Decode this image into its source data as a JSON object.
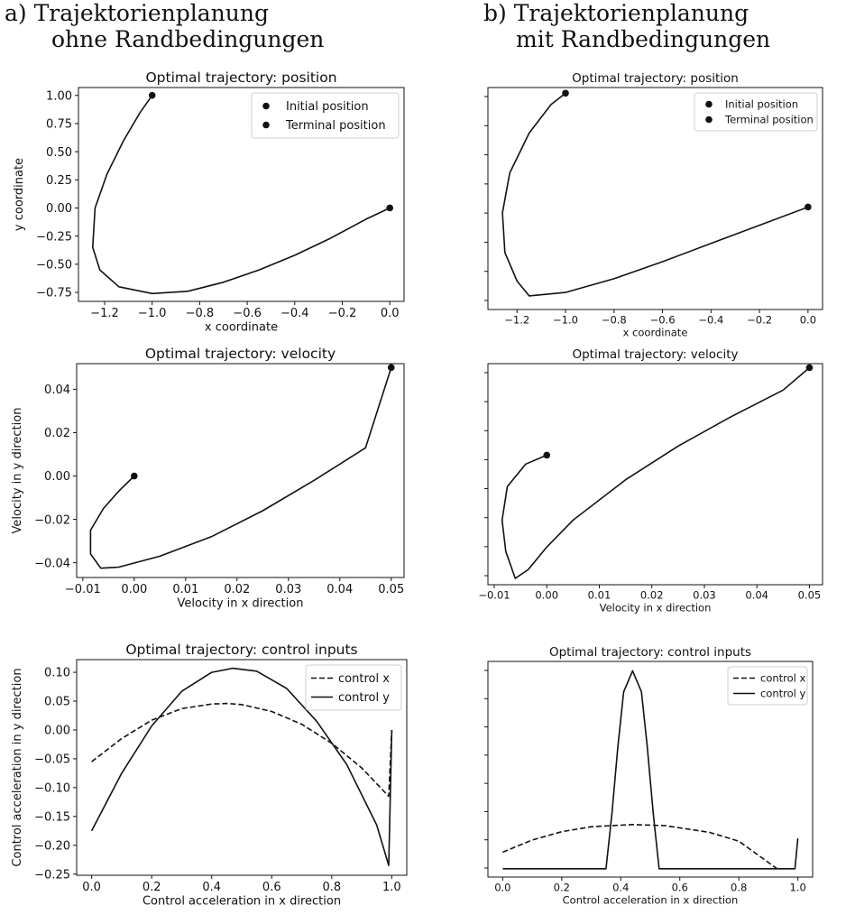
{
  "headings": {
    "a": {
      "line1": "a) Trajektorienplanung",
      "line2": "ohne Randbedingungen"
    },
    "b": {
      "line1": "b) Trajektorienplanung",
      "line2": "mit Randbedingungen"
    }
  },
  "chart_data": [
    {
      "id": "a-position",
      "type": "line",
      "title": "Optimal trajectory: position",
      "xlabel": "x coordinate",
      "ylabel": "y coordinate",
      "xlim": [
        -1.31,
        0.06
      ],
      "ylim": [
        -0.83,
        1.07
      ],
      "xticks": [
        -1.2,
        -1.0,
        -0.8,
        -0.6,
        -0.4,
        -0.2,
        0.0
      ],
      "xtick_labels": [
        "−1.2",
        "−1.0",
        "−0.8",
        "−0.6",
        "−0.4",
        "−0.2",
        "0.0"
      ],
      "yticks": [
        1.0,
        0.75,
        0.5,
        0.25,
        0.0,
        -0.25,
        -0.5,
        -0.75
      ],
      "ytick_labels": [
        "1.00",
        "0.75",
        "0.50",
        "0.25",
        "0.00",
        "−0.25",
        "−0.50",
        "−0.75"
      ],
      "legend": {
        "position": "top-right",
        "entries": [
          {
            "label": "Initial position",
            "marker": "dot"
          },
          {
            "label": "Terminal position",
            "marker": "dot"
          }
        ]
      },
      "series": [
        {
          "style": "solid",
          "x": [
            -1.0,
            -1.05,
            -1.12,
            -1.19,
            -1.24,
            -1.25,
            -1.22,
            -1.14,
            -1.0,
            -0.85,
            -0.7,
            -0.55,
            -0.4,
            -0.25,
            -0.1,
            0.0
          ],
          "y": [
            1.0,
            0.85,
            0.6,
            0.3,
            0.0,
            -0.35,
            -0.55,
            -0.7,
            -0.76,
            -0.74,
            -0.66,
            -0.55,
            -0.42,
            -0.27,
            -0.1,
            0.0
          ]
        }
      ],
      "points": [
        {
          "x": -1.0,
          "y": 1.0
        },
        {
          "x": 0.0,
          "y": 0.0
        }
      ]
    },
    {
      "id": "b-position",
      "type": "line",
      "title": "Optimal trajectory: position",
      "xlabel": "x coordinate",
      "ylabel": "",
      "xlim": [
        -1.32,
        0.06
      ],
      "ylim": [
        -0.9,
        1.05
      ],
      "xticks": [
        -1.2,
        -1.0,
        -0.8,
        -0.6,
        -0.4,
        -0.2,
        0.0
      ],
      "xtick_labels": [
        "−1.2",
        "−1.0",
        "−0.8",
        "−0.6",
        "−0.4",
        "−0.2",
        "0.0"
      ],
      "yticks": [],
      "ytick_labels": [],
      "legend": {
        "position": "top-right",
        "entries": [
          {
            "label": "Initial position",
            "marker": "dot"
          },
          {
            "label": "Terminal position",
            "marker": "dot"
          }
        ]
      },
      "series": [
        {
          "style": "solid",
          "x": [
            -1.0,
            -1.06,
            -1.15,
            -1.23,
            -1.26,
            -1.25,
            -1.2,
            -1.15,
            -1.0,
            -0.8,
            -0.6,
            -0.4,
            -0.2,
            0.0
          ],
          "y": [
            1.0,
            0.9,
            0.65,
            0.3,
            -0.05,
            -0.4,
            -0.65,
            -0.78,
            -0.75,
            -0.63,
            -0.48,
            -0.32,
            -0.16,
            0.0
          ]
        }
      ],
      "points": [
        {
          "x": -1.0,
          "y": 1.0
        },
        {
          "x": 0.0,
          "y": 0.0
        }
      ]
    },
    {
      "id": "a-velocity",
      "type": "line",
      "title": "Optimal trajectory: velocity",
      "xlabel": "Velocity in x direction",
      "ylabel": "Velocity in y direction",
      "xlim": [
        -0.0112,
        0.0525
      ],
      "ylim": [
        -0.0468,
        0.0518
      ],
      "xticks": [
        -0.01,
        0.0,
        0.01,
        0.02,
        0.03,
        0.04,
        0.05
      ],
      "xtick_labels": [
        "−0.01",
        "0.00",
        "0.01",
        "0.02",
        "0.03",
        "0.04",
        "0.05"
      ],
      "yticks": [
        0.04,
        0.02,
        0.0,
        -0.02,
        -0.04
      ],
      "ytick_labels": [
        "0.04",
        "0.02",
        "0.00",
        "−0.02",
        "−0.04"
      ],
      "series": [
        {
          "style": "solid",
          "x": [
            0.0,
            -0.003,
            -0.006,
            -0.0085,
            -0.0085,
            -0.0065,
            -0.003,
            0.005,
            0.015,
            0.025,
            0.035,
            0.045,
            0.05
          ],
          "y": [
            0.0,
            -0.007,
            -0.015,
            -0.025,
            -0.036,
            -0.0425,
            -0.042,
            -0.037,
            -0.028,
            -0.016,
            -0.002,
            0.013,
            0.05
          ]
        }
      ],
      "points": [
        {
          "x": 0.0,
          "y": 0.0
        },
        {
          "x": 0.05,
          "y": 0.05
        }
      ]
    },
    {
      "id": "b-velocity",
      "type": "line",
      "title": "Optimal trajectory: velocity",
      "xlabel": "Velocity in x direction",
      "ylabel": "",
      "xlim": [
        -0.0112,
        0.0525
      ],
      "ylim": [
        -0.0468,
        0.0518
      ],
      "xticks": [
        -0.01,
        0.0,
        0.01,
        0.02,
        0.03,
        0.04,
        0.05
      ],
      "xtick_labels": [
        "−0.01",
        "0.00",
        "0.01",
        "0.02",
        "0.03",
        "0.04",
        "0.05"
      ],
      "yticks": [],
      "ytick_labels": [],
      "series": [
        {
          "style": "solid",
          "x": [
            0.0,
            -0.004,
            -0.0075,
            -0.0085,
            -0.0078,
            -0.006,
            -0.0035,
            0.0,
            0.005,
            0.015,
            0.025,
            0.035,
            0.045,
            0.05
          ],
          "y": [
            0.011,
            0.007,
            -0.003,
            -0.018,
            -0.032,
            -0.044,
            -0.04,
            -0.03,
            -0.018,
            -0.0,
            0.015,
            0.028,
            0.04,
            0.05
          ]
        }
      ],
      "points": [
        {
          "x": 0.0,
          "y": 0.011
        },
        {
          "x": 0.05,
          "y": 0.05
        }
      ]
    },
    {
      "id": "a-control",
      "type": "line",
      "title": "Optimal trajectory: control inputs",
      "xlabel": "Control acceleration in x direction",
      "ylabel": "Control acceleration in y direction",
      "xlim": [
        -0.05,
        1.05
      ],
      "ylim": [
        -0.252,
        0.122
      ],
      "xticks": [
        0.0,
        0.2,
        0.4,
        0.6,
        0.8,
        1.0
      ],
      "xtick_labels": [
        "0.0",
        "0.2",
        "0.4",
        "0.6",
        "0.8",
        "1.0"
      ],
      "yticks": [
        0.1,
        0.05,
        0.0,
        -0.05,
        -0.1,
        -0.15,
        -0.2,
        -0.25
      ],
      "ytick_labels": [
        "0.10",
        "0.05",
        "0.00",
        "−0.05",
        "−0.10",
        "−0.15",
        "−0.20",
        "−0.25"
      ],
      "legend": {
        "position": "top-right",
        "entries": [
          {
            "label": "control x",
            "style": "dashed"
          },
          {
            "label": "control y",
            "style": "solid"
          }
        ]
      },
      "series": [
        {
          "name": "control x",
          "style": "dashed",
          "x": [
            0.0,
            0.1,
            0.2,
            0.3,
            0.4,
            0.45,
            0.5,
            0.6,
            0.7,
            0.8,
            0.9,
            0.99,
            1.0
          ],
          "y": [
            -0.055,
            -0.015,
            0.017,
            0.037,
            0.045,
            0.046,
            0.044,
            0.032,
            0.01,
            -0.023,
            -0.066,
            -0.115,
            0.0
          ]
        },
        {
          "name": "control y",
          "style": "solid",
          "x": [
            0.0,
            0.1,
            0.2,
            0.3,
            0.4,
            0.47,
            0.55,
            0.65,
            0.75,
            0.85,
            0.95,
            0.99,
            1.0
          ],
          "y": [
            -0.175,
            -0.075,
            0.007,
            0.067,
            0.1,
            0.107,
            0.102,
            0.072,
            0.015,
            -0.06,
            -0.165,
            -0.235,
            0.0
          ]
        }
      ]
    },
    {
      "id": "b-control",
      "type": "line",
      "title": "Optimal trajectory: control inputs",
      "xlabel": "Control acceleration in x direction",
      "ylabel": "",
      "xlim": [
        -0.05,
        1.05
      ],
      "ylim": [
        -0.265,
        0.125
      ],
      "xticks": [
        0.0,
        0.2,
        0.4,
        0.6,
        0.8,
        1.0
      ],
      "xtick_labels": [
        "0.0",
        "0.2",
        "0.4",
        "0.6",
        "0.8",
        "1.0"
      ],
      "yticks": [],
      "ytick_labels": [],
      "legend": {
        "position": "top-right",
        "entries": [
          {
            "label": "control x",
            "style": "dashed"
          },
          {
            "label": "control y",
            "style": "solid"
          }
        ]
      },
      "series": [
        {
          "name": "control x",
          "style": "dashed",
          "x": [
            0.0,
            0.1,
            0.2,
            0.3,
            0.44,
            0.55,
            0.7,
            0.8,
            0.93
          ],
          "y": [
            -0.22,
            -0.198,
            -0.183,
            -0.174,
            -0.17,
            -0.172,
            -0.184,
            -0.2,
            -0.25
          ]
        },
        {
          "name": "control y",
          "style": "solid",
          "x": [
            0.0,
            0.35,
            0.37,
            0.39,
            0.41,
            0.44,
            0.47,
            0.49,
            0.51,
            0.53,
            0.54,
            0.99,
            1.0
          ],
          "y": [
            -0.25,
            -0.25,
            -0.15,
            -0.03,
            0.07,
            0.108,
            0.07,
            -0.03,
            -0.15,
            -0.25,
            -0.25,
            -0.25,
            -0.195
          ]
        }
      ]
    }
  ]
}
